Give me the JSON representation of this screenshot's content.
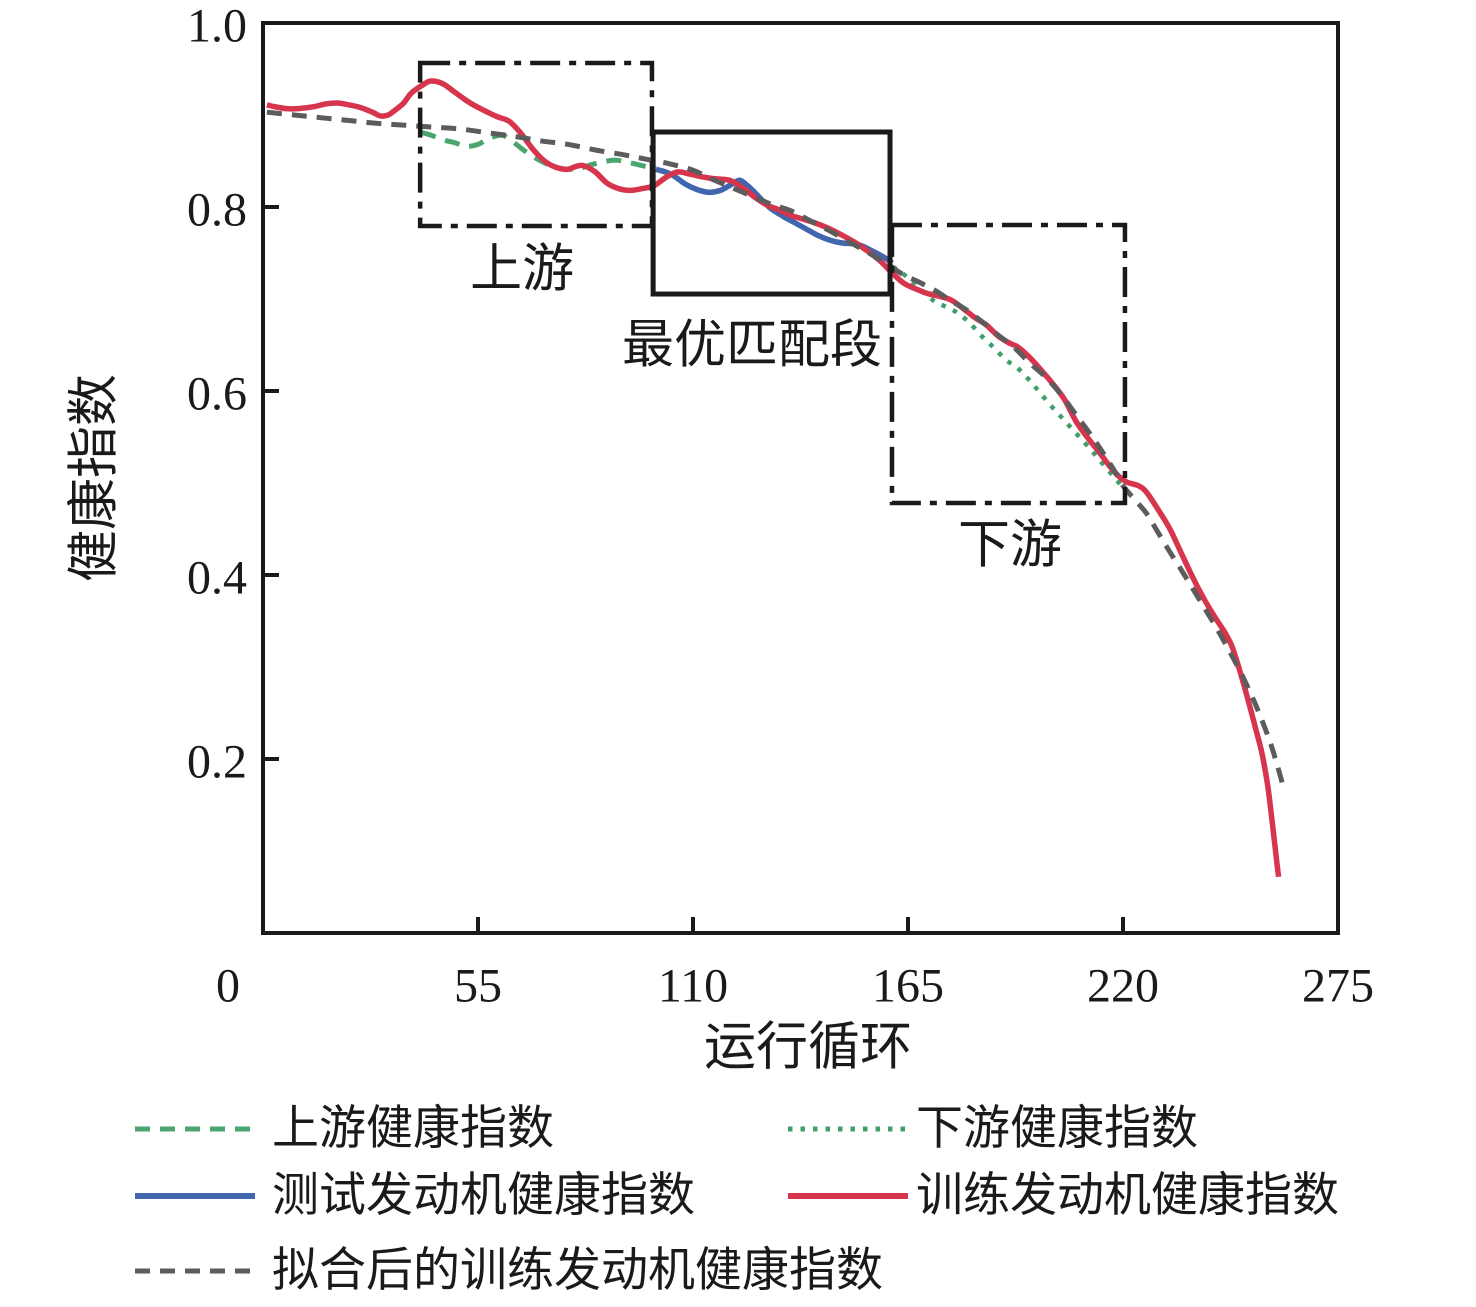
{
  "figure_colors": {
    "axis_black": "#1a1a1a",
    "upstream_green": "#4ba56e",
    "downstream_green": "#3f9f6a",
    "test_blue": "#4066ae",
    "train_red": "#d7354d",
    "fitted_gray": "#5c5c5c"
  },
  "chart_data": {
    "type": "line",
    "title": "",
    "xlabel": "运行循环",
    "ylabel": "健康指数",
    "xlim": [
      0,
      275
    ],
    "ylim": [
      0,
      1.0
    ],
    "grid": false,
    "legend_position": "below",
    "x_ticks": [
      0,
      55,
      110,
      165,
      220,
      275
    ],
    "x_tick_labels": [
      "0",
      "55",
      "110",
      "165",
      "220",
      "275"
    ],
    "y_ticks": [
      1.0,
      0.8,
      0.6,
      0.4,
      0.2
    ],
    "y_tick_labels": [
      "1.0",
      "0.8",
      "0.6",
      "0.4",
      "0.2"
    ],
    "series": [
      {
        "name": "上游健康指数",
        "color": "#4ba56e",
        "style": "dashed",
        "width": 5,
        "points": [
          [
            40.5,
            0.881
          ],
          [
            43,
            0.878
          ],
          [
            46,
            0.873
          ],
          [
            49,
            0.87
          ],
          [
            52,
            0.866
          ],
          [
            55,
            0.868
          ],
          [
            58,
            0.875
          ],
          [
            61,
            0.878
          ],
          [
            63,
            0.874
          ],
          [
            66,
            0.864
          ],
          [
            69,
            0.855
          ],
          [
            72,
            0.848
          ],
          [
            75,
            0.843
          ],
          [
            78,
            0.841
          ],
          [
            81,
            0.842
          ],
          [
            84,
            0.846
          ],
          [
            87,
            0.849
          ],
          [
            90,
            0.851
          ],
          [
            93,
            0.849
          ],
          [
            96,
            0.846
          ],
          [
            99,
            0.843
          ],
          [
            100.5,
            0.842
          ]
        ]
      },
      {
        "name": "下游健康指数",
        "color": "#3f9f6a",
        "style": "dotted",
        "width": 4.5,
        "points": [
          [
            161,
            0.735
          ],
          [
            163,
            0.73
          ],
          [
            166,
            0.719
          ],
          [
            169,
            0.707
          ],
          [
            172,
            0.697
          ],
          [
            175,
            0.691
          ],
          [
            178,
            0.684
          ],
          [
            181,
            0.673
          ],
          [
            184,
            0.659
          ],
          [
            187,
            0.647
          ],
          [
            190,
            0.634
          ],
          [
            193,
            0.625
          ],
          [
            196,
            0.612
          ],
          [
            199,
            0.597
          ],
          [
            202,
            0.582
          ],
          [
            205,
            0.568
          ],
          [
            208,
            0.554
          ],
          [
            211,
            0.54
          ],
          [
            214,
            0.525
          ],
          [
            217,
            0.51
          ],
          [
            219,
            0.5
          ],
          [
            220.5,
            0.492
          ]
        ]
      },
      {
        "name": "测试发动机健康指数",
        "color": "#4066ae",
        "style": "solid",
        "width": 5.5,
        "points": [
          [
            100.5,
            0.841
          ],
          [
            103,
            0.838
          ],
          [
            105,
            0.834
          ],
          [
            108,
            0.825
          ],
          [
            111,
            0.819
          ],
          [
            114,
            0.816
          ],
          [
            117,
            0.818
          ],
          [
            120,
            0.825
          ],
          [
            122,
            0.829
          ],
          [
            124,
            0.823
          ],
          [
            126,
            0.815
          ],
          [
            128,
            0.806
          ],
          [
            130,
            0.798
          ],
          [
            133,
            0.79
          ],
          [
            136,
            0.783
          ],
          [
            139,
            0.776
          ],
          [
            142,
            0.769
          ],
          [
            145,
            0.764
          ],
          [
            148,
            0.761
          ],
          [
            151,
            0.76
          ],
          [
            153,
            0.758
          ],
          [
            156,
            0.752
          ],
          [
            159,
            0.745
          ],
          [
            161,
            0.739
          ]
        ]
      },
      {
        "name": "训练发动机健康指数",
        "color": "#d7354d",
        "style": "solid",
        "width": 5.5,
        "points": [
          [
            1,
            0.911
          ],
          [
            3,
            0.909
          ],
          [
            6,
            0.907
          ],
          [
            9,
            0.907
          ],
          [
            13,
            0.909
          ],
          [
            16,
            0.912
          ],
          [
            19,
            0.913
          ],
          [
            22,
            0.911
          ],
          [
            25,
            0.908
          ],
          [
            28,
            0.903
          ],
          [
            30,
            0.899
          ],
          [
            32,
            0.9
          ],
          [
            34,
            0.906
          ],
          [
            36,
            0.913
          ],
          [
            38,
            0.924
          ],
          [
            41,
            0.933
          ],
          [
            43,
            0.937
          ],
          [
            46,
            0.934
          ],
          [
            49,
            0.925
          ],
          [
            53,
            0.913
          ],
          [
            57,
            0.904
          ],
          [
            60,
            0.898
          ],
          [
            63,
            0.893
          ],
          [
            66,
            0.88
          ],
          [
            69,
            0.863
          ],
          [
            72,
            0.85
          ],
          [
            75,
            0.843
          ],
          [
            78,
            0.841
          ],
          [
            80,
            0.844
          ],
          [
            82,
            0.845
          ],
          [
            85,
            0.838
          ],
          [
            88,
            0.826
          ],
          [
            91,
            0.82
          ],
          [
            94,
            0.818
          ],
          [
            97,
            0.82
          ],
          [
            100,
            0.823
          ],
          [
            103,
            0.832
          ],
          [
            106,
            0.838
          ],
          [
            109,
            0.836
          ],
          [
            112,
            0.833
          ],
          [
            115,
            0.831
          ],
          [
            118,
            0.83
          ],
          [
            120,
            0.828
          ],
          [
            123,
            0.82
          ],
          [
            126,
            0.81
          ],
          [
            129,
            0.802
          ],
          [
            132,
            0.797
          ],
          [
            135,
            0.791
          ],
          [
            138,
            0.787
          ],
          [
            141,
            0.783
          ],
          [
            144,
            0.778
          ],
          [
            147,
            0.772
          ],
          [
            150,
            0.765
          ],
          [
            152,
            0.76
          ],
          [
            155,
            0.751
          ],
          [
            158,
            0.741
          ],
          [
            161,
            0.728
          ],
          [
            164,
            0.717
          ],
          [
            167,
            0.711
          ],
          [
            170,
            0.706
          ],
          [
            173,
            0.703
          ],
          [
            176,
            0.699
          ],
          [
            179,
            0.69
          ],
          [
            182,
            0.68
          ],
          [
            185,
            0.672
          ],
          [
            188,
            0.66
          ],
          [
            191,
            0.652
          ],
          [
            193,
            0.648
          ],
          [
            196,
            0.637
          ],
          [
            199,
            0.623
          ],
          [
            202,
            0.608
          ],
          [
            205,
            0.591
          ],
          [
            208,
            0.567
          ],
          [
            211,
            0.549
          ],
          [
            214,
            0.533
          ],
          [
            217,
            0.516
          ],
          [
            219,
            0.507
          ],
          [
            221,
            0.501
          ],
          [
            224,
            0.497
          ],
          [
            226,
            0.49
          ],
          [
            229,
            0.471
          ],
          [
            232,
            0.45
          ],
          [
            235,
            0.423
          ],
          [
            238,
            0.396
          ],
          [
            241,
            0.372
          ],
          [
            244,
            0.351
          ],
          [
            246,
            0.338
          ],
          [
            248,
            0.321
          ],
          [
            250,
            0.294
          ],
          [
            252,
            0.264
          ],
          [
            254,
            0.232
          ],
          [
            255.5,
            0.207
          ],
          [
            257,
            0.172
          ],
          [
            258,
            0.138
          ],
          [
            258.8,
            0.108
          ],
          [
            259.4,
            0.086
          ],
          [
            259.8,
            0.072
          ]
        ]
      },
      {
        "name": "拟合后的训练发动机健康指数",
        "color": "#5c5c5c",
        "style": "dashed",
        "width": 5,
        "points": [
          [
            1,
            0.903
          ],
          [
            8,
            0.9
          ],
          [
            15,
            0.897
          ],
          [
            22,
            0.894
          ],
          [
            29,
            0.891
          ],
          [
            36,
            0.889
          ],
          [
            43,
            0.887
          ],
          [
            50,
            0.885
          ],
          [
            57,
            0.881
          ],
          [
            64,
            0.877
          ],
          [
            71,
            0.872
          ],
          [
            78,
            0.868
          ],
          [
            85,
            0.862
          ],
          [
            92,
            0.857
          ],
          [
            98,
            0.852
          ],
          [
            104,
            0.847
          ],
          [
            110,
            0.84
          ],
          [
            115,
            0.83
          ],
          [
            120,
            0.821
          ],
          [
            125,
            0.812
          ],
          [
            130,
            0.803
          ],
          [
            135,
            0.796
          ],
          [
            140,
            0.785
          ],
          [
            145,
            0.774
          ],
          [
            150,
            0.762
          ],
          [
            155,
            0.75
          ],
          [
            160,
            0.737
          ],
          [
            164,
            0.726
          ],
          [
            168,
            0.718
          ],
          [
            172,
            0.709
          ],
          [
            176,
            0.698
          ],
          [
            180,
            0.688
          ],
          [
            184,
            0.675
          ],
          [
            188,
            0.661
          ],
          [
            192,
            0.648
          ],
          [
            196,
            0.631
          ],
          [
            200,
            0.616
          ],
          [
            204,
            0.597
          ],
          [
            208,
            0.574
          ],
          [
            212,
            0.551
          ],
          [
            215,
            0.532
          ],
          [
            218,
            0.512
          ],
          [
            220,
            0.497
          ],
          [
            223,
            0.482
          ],
          [
            226,
            0.467
          ],
          [
            229,
            0.446
          ],
          [
            232,
            0.425
          ],
          [
            235,
            0.405
          ],
          [
            238,
            0.384
          ],
          [
            241,
            0.363
          ],
          [
            244,
            0.342
          ],
          [
            247,
            0.319
          ],
          [
            250,
            0.295
          ],
          [
            253,
            0.268
          ],
          [
            255,
            0.248
          ],
          [
            257,
            0.226
          ],
          [
            258.5,
            0.207
          ],
          [
            260,
            0.185
          ],
          [
            261,
            0.17
          ]
        ]
      }
    ],
    "annotations": [
      {
        "text": "上游",
        "box_style": "dashdot",
        "x0": 40.2,
        "x1": 99.5,
        "y0": 0.7793,
        "y1": 0.9565,
        "label_x": 66.3,
        "label_y": 0.7315
      },
      {
        "text": "最优匹配段",
        "box_style": "solid",
        "x0": 99.8,
        "x1": 160.4,
        "y0": 0.7054,
        "y1": 0.8815,
        "label_x": 125.1,
        "label_y": 0.649
      },
      {
        "text": "下游",
        "box_style": "dashdot",
        "x0": 160.9,
        "x1": 220.5,
        "y0": 0.4783,
        "y1": 0.7804,
        "label_x": 191.1,
        "label_y": 0.4315
      }
    ]
  },
  "legend": {
    "items": [
      {
        "label": "上游健康指数",
        "style": "dashed",
        "color": "#4ba56e"
      },
      {
        "label": "下游健康指数",
        "style": "dotted",
        "color": "#3f9f6a"
      },
      {
        "label": "测试发动机健康指数",
        "style": "solid",
        "color": "#4066ae"
      },
      {
        "label": "训练发动机健康指数",
        "style": "solid",
        "color": "#d7354d"
      },
      {
        "label": "拟合后的训练发动机健康指数",
        "style": "dashed",
        "color": "#5c5c5c"
      }
    ]
  }
}
